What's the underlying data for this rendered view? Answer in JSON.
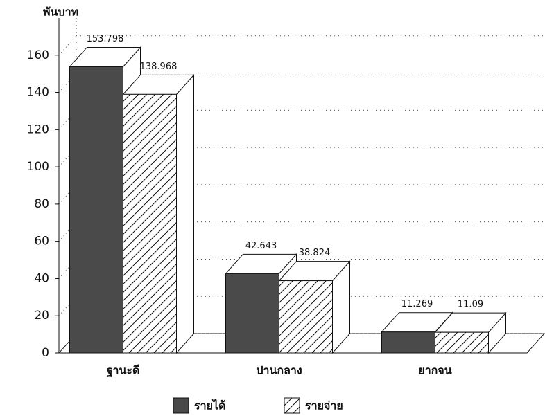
{
  "chart_data": {
    "type": "bar3d",
    "y_label": "พันบาท",
    "categories": [
      "ฐานะดี",
      "ปานกลาง",
      "ยากจน"
    ],
    "series": [
      {
        "name": "รายได้",
        "color": "#4a4a4a",
        "values": [
          153.798,
          42.643,
          11.269
        ]
      },
      {
        "name": "รายจ่าย",
        "color": "#ffffff",
        "hatch": true,
        "values": [
          138.968,
          38.824,
          11.09
        ]
      }
    ],
    "ylim": [
      0,
      180
    ],
    "yticks": [
      0,
      20,
      40,
      60,
      80,
      100,
      120,
      140,
      160
    ],
    "grid": true
  }
}
